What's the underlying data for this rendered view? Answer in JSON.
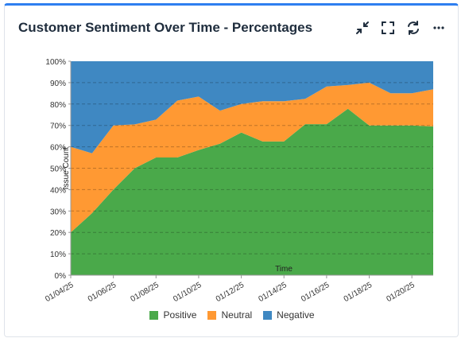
{
  "header": {
    "title": "Customer Sentiment Over Time - Percentages"
  },
  "toolbar": {
    "icons": [
      "collapse-icon",
      "fullscreen-icon",
      "refresh-icon",
      "more-icon"
    ]
  },
  "chart_data": {
    "type": "area",
    "stacked": true,
    "normalized": true,
    "title": "",
    "xlabel": "Time",
    "ylabel": "Issue Count",
    "ylim": [
      0,
      100
    ],
    "yticks": [
      "0%",
      "10%",
      "20%",
      "30%",
      "40%",
      "50%",
      "60%",
      "70%",
      "80%",
      "90%",
      "100%"
    ],
    "x": [
      "01/04/25",
      "01/05/25",
      "01/06/25",
      "01/07/25",
      "01/08/25",
      "01/09/25",
      "01/10/25",
      "01/11/25",
      "01/12/25",
      "01/13/25",
      "01/14/25",
      "01/15/25",
      "01/16/25",
      "01/17/25",
      "01/18/25",
      "01/19/25",
      "01/20/25",
      "01/21/25"
    ],
    "xtick_labels": [
      "01/04/25",
      "01/06/25",
      "01/08/25",
      "01/10/25",
      "01/12/25",
      "01/14/25",
      "01/16/25",
      "01/18/25",
      "01/20/25"
    ],
    "grid": true,
    "legend_position": "bottom",
    "series": [
      {
        "name": "Positive",
        "color": "#4aa94a",
        "values": [
          20,
          29,
          40,
          50,
          55,
          55,
          58.5,
          61.5,
          66.7,
          62.5,
          62.5,
          70.6,
          70.6,
          77.8,
          70,
          70,
          70,
          69.5
        ]
      },
      {
        "name": "Neutral",
        "color": "#ff9933",
        "values": [
          40,
          28,
          30,
          20.5,
          17.7,
          26.6,
          25,
          15.4,
          13.3,
          18.8,
          18.8,
          11.8,
          17.6,
          11.1,
          20,
          15,
          15,
          17.4
        ]
      },
      {
        "name": "Negative",
        "color": "#3f88c2",
        "values": [
          40,
          43,
          30,
          29.5,
          27.3,
          18.4,
          16.5,
          23.1,
          20,
          18.7,
          18.7,
          17.6,
          11.8,
          11.1,
          10,
          15,
          15,
          13.1
        ]
      }
    ]
  }
}
